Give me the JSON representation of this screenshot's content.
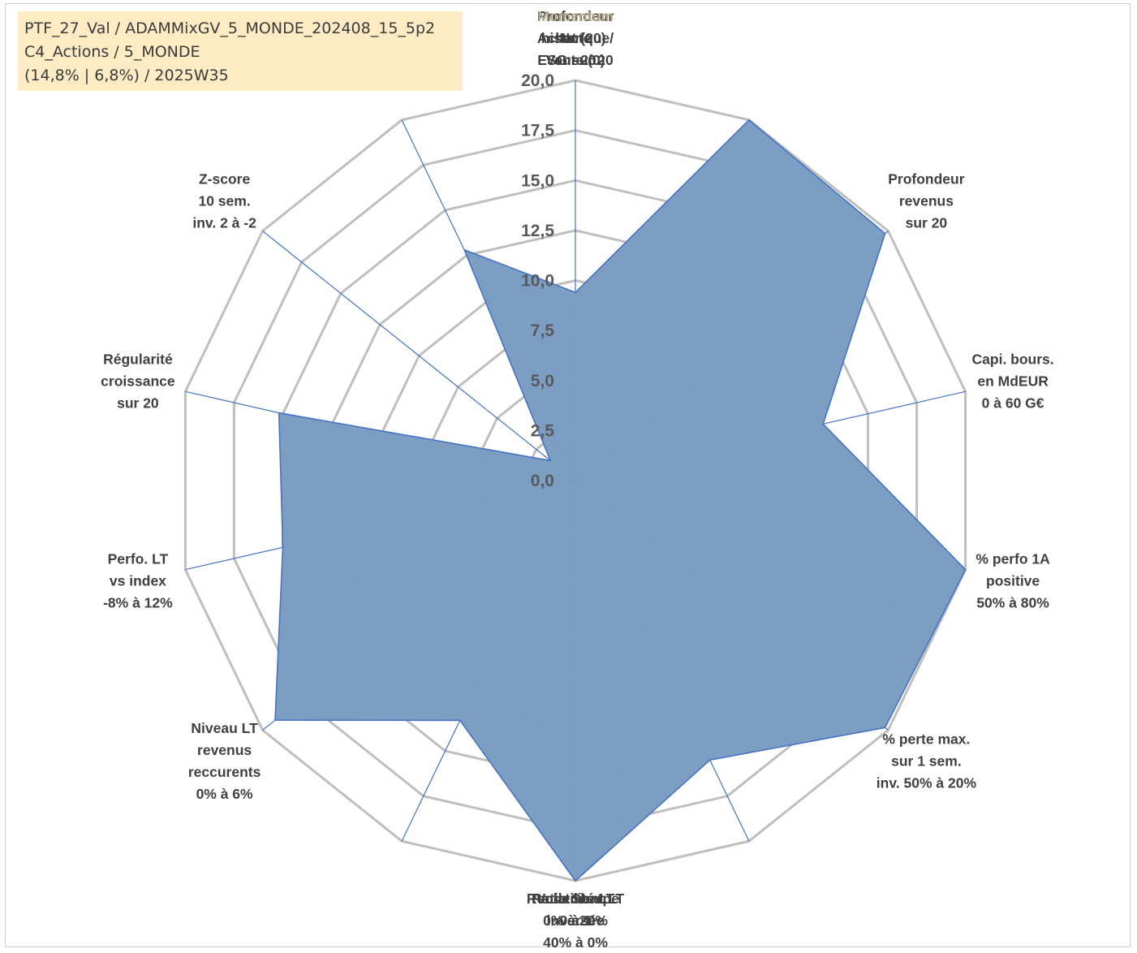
{
  "info_box": {
    "line1": "PTF_27_Val / ADAMMixGV_5_MONDE_202408_15_5p2",
    "line2": "C4_Actions / 5_MONDE",
    "line3": "(14,8% | 6,8%) / 2025W35"
  },
  "colors": {
    "fill": "#7a9cc2",
    "stroke": "#4472c4",
    "grid": "#bfbfbf",
    "spoke": "#4472c4",
    "label": "#404040",
    "highlight_label": "#b3a58c",
    "info_bg": "#fdebc4"
  },
  "chart_data": {
    "type": "radar",
    "title": "",
    "rmin": 0,
    "rmax": 20,
    "tick_step": 2.5,
    "ticks": [
      "0,0",
      "2,5",
      "5,0",
      "7,5",
      "10,0",
      "12,5",
      "15,0",
      "17,5",
      "20,0"
    ],
    "grid": true,
    "categories": [
      {
        "label": [
          "Note",
          "ESG sur 20"
        ]
      },
      {
        "label": [
          "Profondeur",
          "historique",
          "sur 20"
        ]
      },
      {
        "label": [
          "Profondeur",
          "revenus",
          "sur 20"
        ]
      },
      {
        "label": [
          "Capi. bours.",
          "en MdEUR",
          "0 à 60 G€"
        ]
      },
      {
        "label": [
          "% perfo 1A",
          "positive",
          "50% à 80%"
        ]
      },
      {
        "label": [
          "% perte max.",
          "sur 1 sem.",
          "inv. 50% à 20%"
        ]
      },
      {
        "label": [
          "Volatilité LT",
          "inversée",
          "40% à 0%"
        ]
      },
      {
        "label": [
          "Ratio Sharpe",
          "0 à 1"
        ]
      },
      {
        "label": [
          "Rendement LT",
          "0% à 20%"
        ]
      },
      {
        "label": [
          "Niveau LT",
          "revenus",
          "reccurents",
          "0% à 6%"
        ]
      },
      {
        "label": [
          "Perfo. LT",
          "vs index",
          "-8% à 12%"
        ]
      },
      {
        "label": [
          "Régularité",
          "croissance",
          "sur 20"
        ]
      },
      {
        "label": [
          "Z-score",
          "10 sem.",
          "inv. 2 à -2"
        ]
      },
      {
        "label": [
          "Momentum",
          "Achat (20) /",
          "Vente (0)"
        ],
        "highlight_first": true
      }
    ],
    "series": [
      {
        "values": [
          9.4,
          20.0,
          19.8,
          12.7,
          20.0,
          19.8,
          15.5,
          20.0,
          13.3,
          19.2,
          15.0,
          15.2,
          1.6,
          12.8
        ]
      }
    ]
  }
}
